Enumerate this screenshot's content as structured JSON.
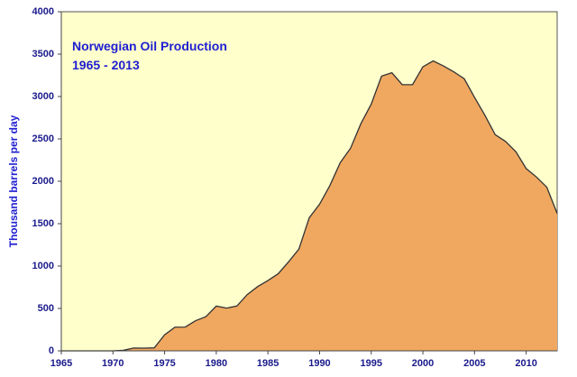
{
  "chart_data": {
    "type": "area",
    "title": "Norwegian Oil Production",
    "subtitle": "1965 - 2013",
    "xlabel": "",
    "ylabel": "Thousand barrels per day",
    "xlim": [
      1965,
      2013
    ],
    "ylim": [
      0,
      4000
    ],
    "x_ticks": [
      1965,
      1970,
      1975,
      1980,
      1985,
      1990,
      1995,
      2000,
      2005,
      2010
    ],
    "y_ticks": [
      0,
      500,
      1000,
      1500,
      2000,
      2500,
      3000,
      3500,
      4000
    ],
    "grid": false,
    "legend": "none",
    "colors": {
      "plot_background": "#ffffcc",
      "area_fill": "#f0a860",
      "area_line": "#333333",
      "text": "#1a1a8c"
    },
    "x": [
      1965,
      1966,
      1967,
      1968,
      1969,
      1970,
      1971,
      1972,
      1973,
      1974,
      1975,
      1976,
      1977,
      1978,
      1979,
      1980,
      1981,
      1982,
      1983,
      1984,
      1985,
      1986,
      1987,
      1988,
      1989,
      1990,
      1991,
      1992,
      1993,
      1994,
      1995,
      1996,
      1997,
      1998,
      1999,
      2000,
      2001,
      2002,
      2003,
      2004,
      2005,
      2006,
      2007,
      2008,
      2009,
      2010,
      2011,
      2012,
      2013
    ],
    "values": [
      0,
      0,
      0,
      0,
      0,
      0,
      6,
      33,
      32,
      35,
      189,
      279,
      281,
      356,
      403,
      528,
      504,
      529,
      664,
      757,
      829,
      910,
      1050,
      1200,
      1570,
      1730,
      1950,
      2220,
      2390,
      2680,
      2910,
      3240,
      3280,
      3140,
      3140,
      3350,
      3420,
      3360,
      3290,
      3210,
      2990,
      2780,
      2550,
      2470,
      2350,
      2150,
      2050,
      1930,
      1620
    ]
  }
}
